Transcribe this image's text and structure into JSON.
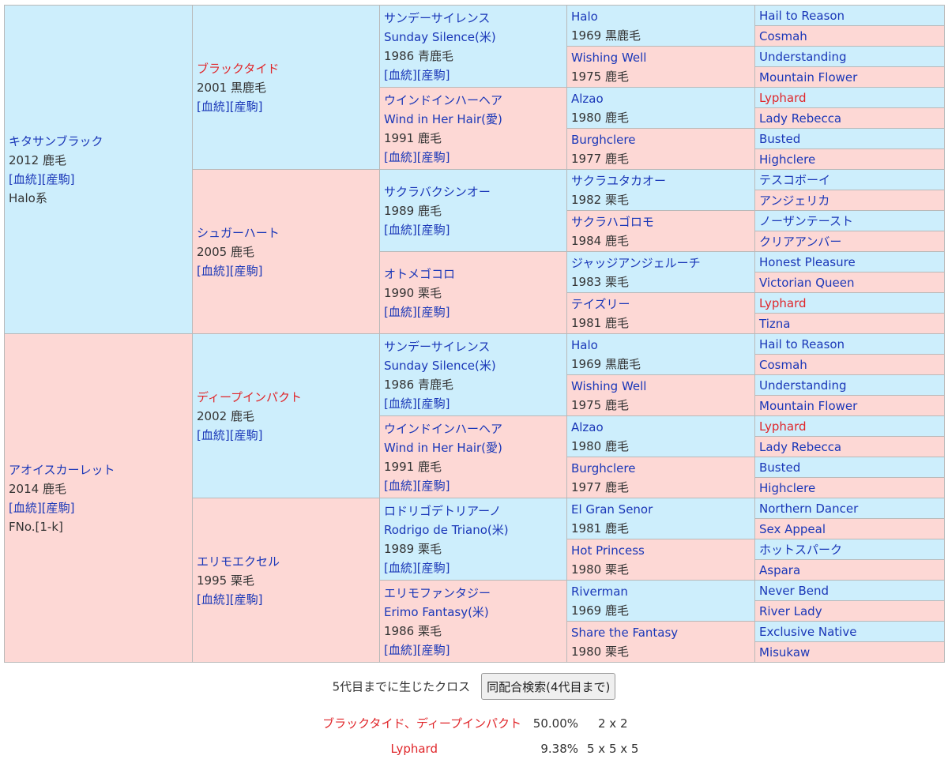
{
  "gen1": [
    {
      "name": "キタサンブラック",
      "year": "2012",
      "color": "鹿毛",
      "links": [
        "[血統]",
        "[産駒]"
      ],
      "extra": "Halo系"
    },
    {
      "name": "アオイスカーレット",
      "year": "2014",
      "color": "鹿毛",
      "links": [
        "[血統]",
        "[産駒]"
      ],
      "extra": "FNo.[1-k]"
    }
  ],
  "gen2": [
    {
      "name": "ブラックタイド",
      "year": "2001",
      "color": "黒鹿毛",
      "links": [
        "[血統]",
        "[産駒]"
      ],
      "highlight": true
    },
    {
      "name": "シュガーハート",
      "year": "2005",
      "color": "鹿毛",
      "links": [
        "[血統]",
        "[産駒]"
      ],
      "highlight": false
    },
    {
      "name": "ディープインパクト",
      "year": "2002",
      "color": "鹿毛",
      "links": [
        "[血統]",
        "[産駒]"
      ],
      "highlight": true
    },
    {
      "name": "エリモエクセル",
      "year": "1995",
      "color": "栗毛",
      "links": [
        "[血統]",
        "[産駒]"
      ],
      "highlight": false
    }
  ],
  "gen3": [
    {
      "name": "サンデーサイレンス",
      "name2": "Sunday Silence(米)",
      "year": "1986",
      "color": "青鹿毛",
      "links": [
        "[血統]",
        "[産駒]"
      ]
    },
    {
      "name": "ウインドインハーヘア",
      "name2": "Wind in Her Hair(愛)",
      "year": "1991",
      "color": "鹿毛",
      "links": [
        "[血統]",
        "[産駒]"
      ]
    },
    {
      "name": "サクラバクシンオー",
      "name2": "",
      "year": "1989",
      "color": "鹿毛",
      "links": [
        "[血統]",
        "[産駒]"
      ]
    },
    {
      "name": "オトメゴコロ",
      "name2": "",
      "year": "1990",
      "color": "栗毛",
      "links": [
        "[血統]",
        "[産駒]"
      ]
    },
    {
      "name": "サンデーサイレンス",
      "name2": "Sunday Silence(米)",
      "year": "1986",
      "color": "青鹿毛",
      "links": [
        "[血統]",
        "[産駒]"
      ]
    },
    {
      "name": "ウインドインハーヘア",
      "name2": "Wind in Her Hair(愛)",
      "year": "1991",
      "color": "鹿毛",
      "links": [
        "[血統]",
        "[産駒]"
      ]
    },
    {
      "name": "ロドリゴデトリアーノ",
      "name2": "Rodrigo de Triano(米)",
      "year": "1989",
      "color": "栗毛",
      "links": [
        "[血統]",
        "[産駒]"
      ]
    },
    {
      "name": "エリモファンタジー",
      "name2": "Erimo Fantasy(米)",
      "year": "1986",
      "color": "栗毛",
      "links": [
        "[血統]",
        "[産駒]"
      ]
    }
  ],
  "gen4": [
    {
      "name": "Halo",
      "year": "1969",
      "color": "黒鹿毛"
    },
    {
      "name": "Wishing Well",
      "year": "1975",
      "color": "鹿毛"
    },
    {
      "name": "Alzao",
      "year": "1980",
      "color": "鹿毛"
    },
    {
      "name": "Burghclere",
      "year": "1977",
      "color": "鹿毛"
    },
    {
      "name": "サクラユタカオー",
      "year": "1982",
      "color": "栗毛"
    },
    {
      "name": "サクラハゴロモ",
      "year": "1984",
      "color": "鹿毛"
    },
    {
      "name": "ジャッジアンジェルーチ",
      "year": "1983",
      "color": "栗毛"
    },
    {
      "name": "テイズリー",
      "year": "1981",
      "color": "鹿毛"
    },
    {
      "name": "Halo",
      "year": "1969",
      "color": "黒鹿毛"
    },
    {
      "name": "Wishing Well",
      "year": "1975",
      "color": "鹿毛"
    },
    {
      "name": "Alzao",
      "year": "1980",
      "color": "鹿毛"
    },
    {
      "name": "Burghclere",
      "year": "1977",
      "color": "鹿毛"
    },
    {
      "name": "El Gran Senor",
      "year": "1981",
      "color": "鹿毛"
    },
    {
      "name": "Hot Princess",
      "year": "1980",
      "color": "栗毛"
    },
    {
      "name": "Riverman",
      "year": "1969",
      "color": "鹿毛"
    },
    {
      "name": "Share the Fantasy",
      "year": "1980",
      "color": "栗毛"
    }
  ],
  "gen5": [
    {
      "name": "Hail to Reason",
      "highlight": false
    },
    {
      "name": "Cosmah",
      "highlight": false
    },
    {
      "name": "Understanding",
      "highlight": false
    },
    {
      "name": "Mountain Flower",
      "highlight": false
    },
    {
      "name": "Lyphard",
      "highlight": true
    },
    {
      "name": "Lady Rebecca",
      "highlight": false
    },
    {
      "name": "Busted",
      "highlight": false
    },
    {
      "name": "Highclere",
      "highlight": false
    },
    {
      "name": "テスコボーイ",
      "highlight": false
    },
    {
      "name": "アンジェリカ",
      "highlight": false
    },
    {
      "name": "ノーザンテースト",
      "highlight": false
    },
    {
      "name": "クリアアンバー",
      "highlight": false
    },
    {
      "name": "Honest Pleasure",
      "highlight": false
    },
    {
      "name": "Victorian Queen",
      "highlight": false
    },
    {
      "name": "Lyphard",
      "highlight": true
    },
    {
      "name": "Tizna",
      "highlight": false
    },
    {
      "name": "Hail to Reason",
      "highlight": false
    },
    {
      "name": "Cosmah",
      "highlight": false
    },
    {
      "name": "Understanding",
      "highlight": false
    },
    {
      "name": "Mountain Flower",
      "highlight": false
    },
    {
      "name": "Lyphard",
      "highlight": true
    },
    {
      "name": "Lady Rebecca",
      "highlight": false
    },
    {
      "name": "Busted",
      "highlight": false
    },
    {
      "name": "Highclere",
      "highlight": false
    },
    {
      "name": "Northern Dancer",
      "highlight": false
    },
    {
      "name": "Sex Appeal",
      "highlight": false
    },
    {
      "name": "ホットスパーク",
      "highlight": false
    },
    {
      "name": "Aspara",
      "highlight": false
    },
    {
      "name": "Never Bend",
      "highlight": false
    },
    {
      "name": "River Lady",
      "highlight": false
    },
    {
      "name": "Exclusive Native",
      "highlight": false
    },
    {
      "name": "Misukaw",
      "highlight": false
    }
  ],
  "cross": {
    "label": "5代目までに生じたクロス",
    "button": "同配合検索(4代目まで)",
    "rows": [
      {
        "name": "ブラックタイド、ディープインパクト",
        "percent": "50.00%",
        "gens": "2 x 2"
      },
      {
        "name": "Lyphard",
        "percent": "9.38%",
        "gens": "5 x 5 x 5"
      }
    ]
  },
  "colors": {
    "male": "#cdeefc",
    "female": "#fdd8d5",
    "link": "#1a37b8",
    "highlight": "#e0262a",
    "border": "#b9b9b9"
  }
}
